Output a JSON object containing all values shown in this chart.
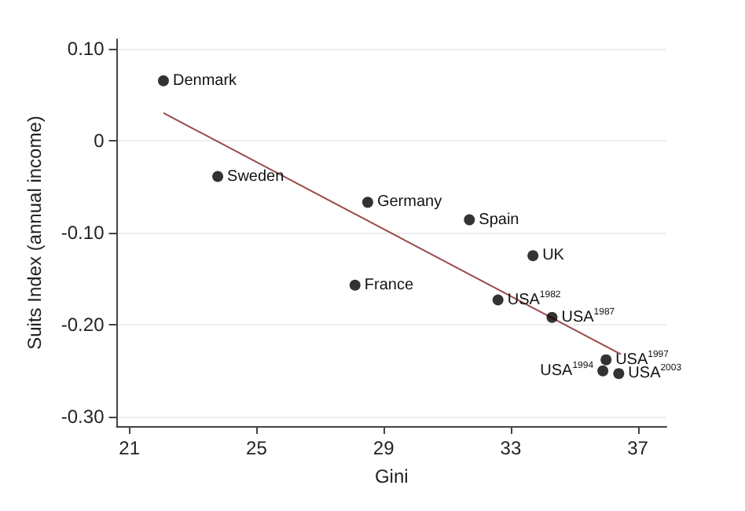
{
  "chart_data": {
    "type": "scatter",
    "xlabel": "Gini",
    "ylabel": "Suits Index (annual income)",
    "xlim": [
      20.6,
      37.9
    ],
    "ylim": [
      -0.31,
      0.11
    ],
    "xticks": [
      21,
      25,
      29,
      33,
      37
    ],
    "yticks": [
      {
        "value": 0.1,
        "label": "0.10"
      },
      0,
      {
        "value": -0.1,
        "label": "-0.10"
      },
      {
        "value": -0.2,
        "label": "-0.20"
      },
      {
        "value": -0.3,
        "label": "-0.30"
      }
    ],
    "grid": "y",
    "series": [
      {
        "color": "#000000",
        "marker": "circle",
        "x": [
          22.07,
          23.78,
          28.5,
          28.1,
          31.7,
          33.7,
          32.6,
          34.3,
          36.0,
          35.9,
          36.4
        ],
        "values": [
          0.065,
          -0.039,
          -0.067,
          -0.157,
          -0.086,
          -0.125,
          -0.173,
          -0.192,
          -0.238,
          -0.25,
          -0.253
        ]
      },
      {
        "type": "line",
        "color": "#9a4a4a",
        "line_style": "solid",
        "x": [
          22.07,
          36.47
        ],
        "values": [
          0.03,
          -0.232
        ]
      }
    ],
    "annotations": [
      {
        "text": "Denmark",
        "x": 22.07,
        "y": 0.065
      },
      {
        "text": "Sweden",
        "x": 23.78,
        "y": -0.039
      },
      {
        "text": "Germany",
        "x": 28.5,
        "y": -0.067
      },
      {
        "text": "France",
        "x": 28.1,
        "y": -0.157
      },
      {
        "text": "Spain",
        "x": 31.7,
        "y": -0.086
      },
      {
        "text": "UK",
        "x": 33.7,
        "y": -0.125
      },
      {
        "text": "USA$^{1982}$",
        "x": 32.6,
        "y": -0.173
      },
      {
        "text": "USA$^{1987}$",
        "x": 34.3,
        "y": -0.192
      },
      {
        "text": "USA$^{1997}$",
        "x": 36.0,
        "y": -0.238
      },
      {
        "text": "USA$^{1994}$",
        "x": 35.9,
        "y": -0.25
      },
      {
        "text": "USA$^{2003}$",
        "x": 36.4,
        "y": -0.253
      }
    ]
  }
}
